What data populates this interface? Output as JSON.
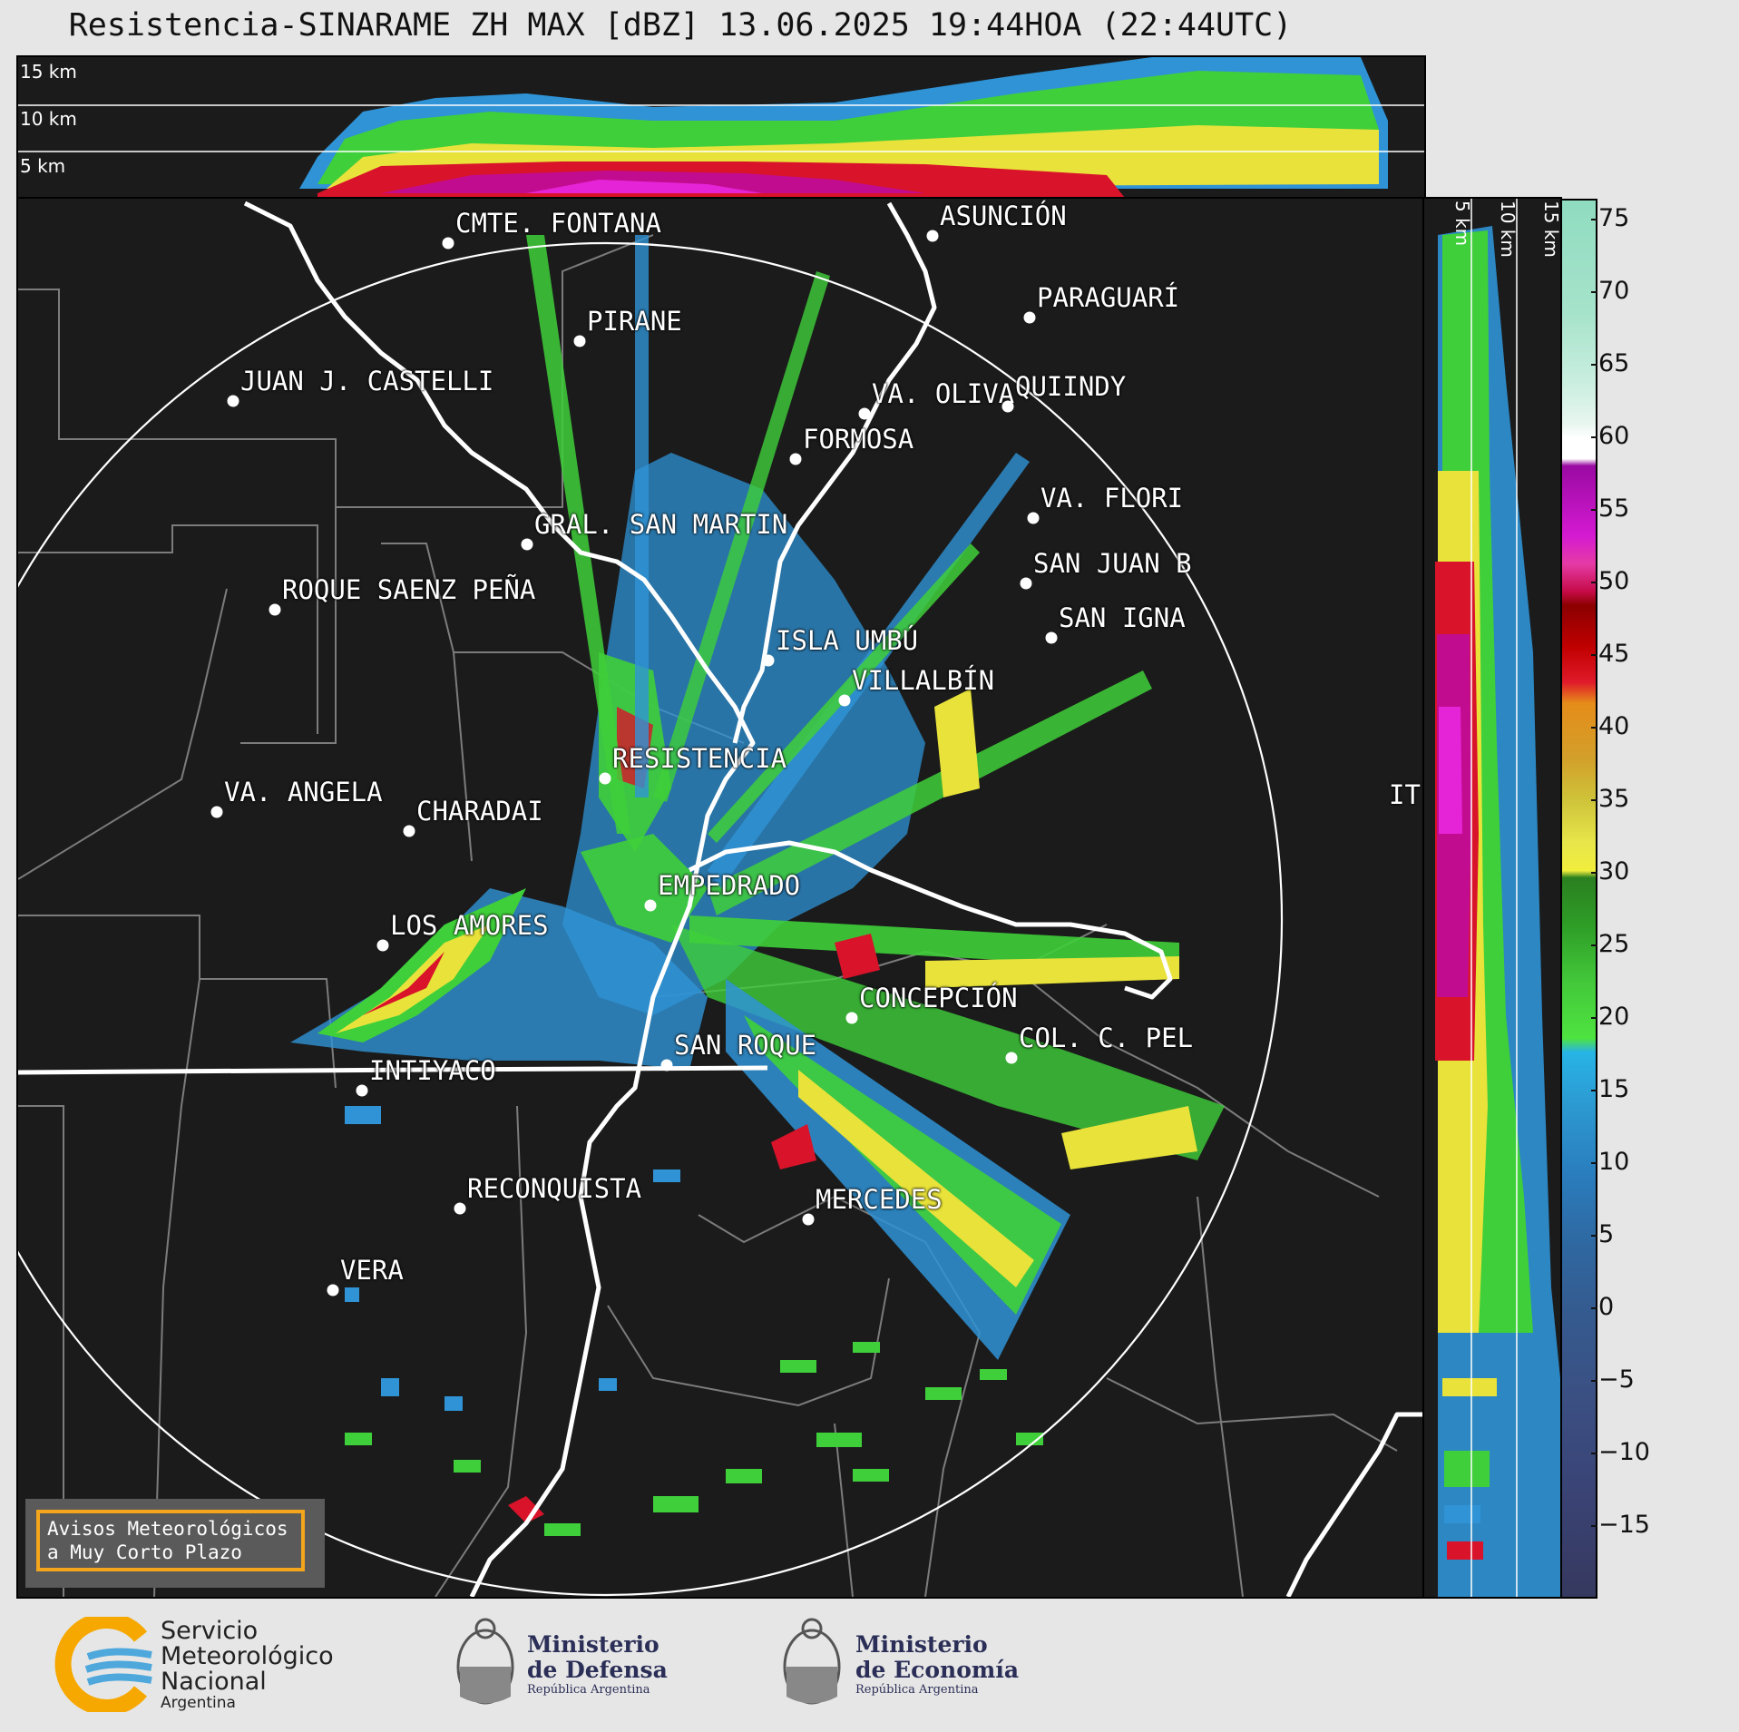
{
  "title": "Resistencia-SINARAME ZH MAX [dBZ] 13.06.2025 19:44HOA (22:44UTC)",
  "top_altitude_labels": [
    "15 km",
    "10 km",
    "5 km"
  ],
  "side_altitude_labels": [
    "5 km",
    "10 km",
    "15 km"
  ],
  "cities": [
    {
      "name": "CMTE. FONTANA"
    },
    {
      "name": "ASUNCIÓN"
    },
    {
      "name": "PARAGUARÍ"
    },
    {
      "name": "PIRANE"
    },
    {
      "name": "JUAN J. CASTELLI"
    },
    {
      "name": "VA. OLIVA"
    },
    {
      "name": "QUIINDY"
    },
    {
      "name": "FORMOSA"
    },
    {
      "name": "VA. FLORI"
    },
    {
      "name": "GRAL. SAN MARTIN"
    },
    {
      "name": "SAN JUAN B"
    },
    {
      "name": "ROQUE SAENZ PEÑA"
    },
    {
      "name": "SAN IGNA"
    },
    {
      "name": "ISLA UMBÚ"
    },
    {
      "name": "VILLALBÍN"
    },
    {
      "name": "RESISTENCIA"
    },
    {
      "name": "VA. ANGELA"
    },
    {
      "name": "CHARADAI"
    },
    {
      "name": "IT"
    },
    {
      "name": "EMPEDRADO"
    },
    {
      "name": "LOS AMORES"
    },
    {
      "name": "CONCEPCIÓN"
    },
    {
      "name": "SAN ROQUE"
    },
    {
      "name": "COL. C. PEL"
    },
    {
      "name": "INTIYACO"
    },
    {
      "name": "RECONQUISTA"
    },
    {
      "name": "MERCEDES"
    },
    {
      "name": "VERA"
    }
  ],
  "colorbar": {
    "ticks": [
      "75",
      "70",
      "65",
      "60",
      "55",
      "50",
      "45",
      "40",
      "35",
      "30",
      "25",
      "20",
      "15",
      "10",
      "5",
      "0",
      "−5",
      "−10",
      "−15"
    ]
  },
  "avisos": {
    "line1": "Avisos Meteorológicos",
    "line2": "a Muy Corto Plazo"
  },
  "logos": {
    "smn": {
      "line1": "Servicio",
      "line2": "Meteorológico",
      "line3": "Nacional",
      "line4": "Argentina"
    },
    "defensa": {
      "line1": "Ministerio",
      "line2": "de Defensa",
      "line3": "República Argentina"
    },
    "economia": {
      "line1": "Ministerio",
      "line2": "de Economía",
      "line3": "República Argentina"
    }
  }
}
